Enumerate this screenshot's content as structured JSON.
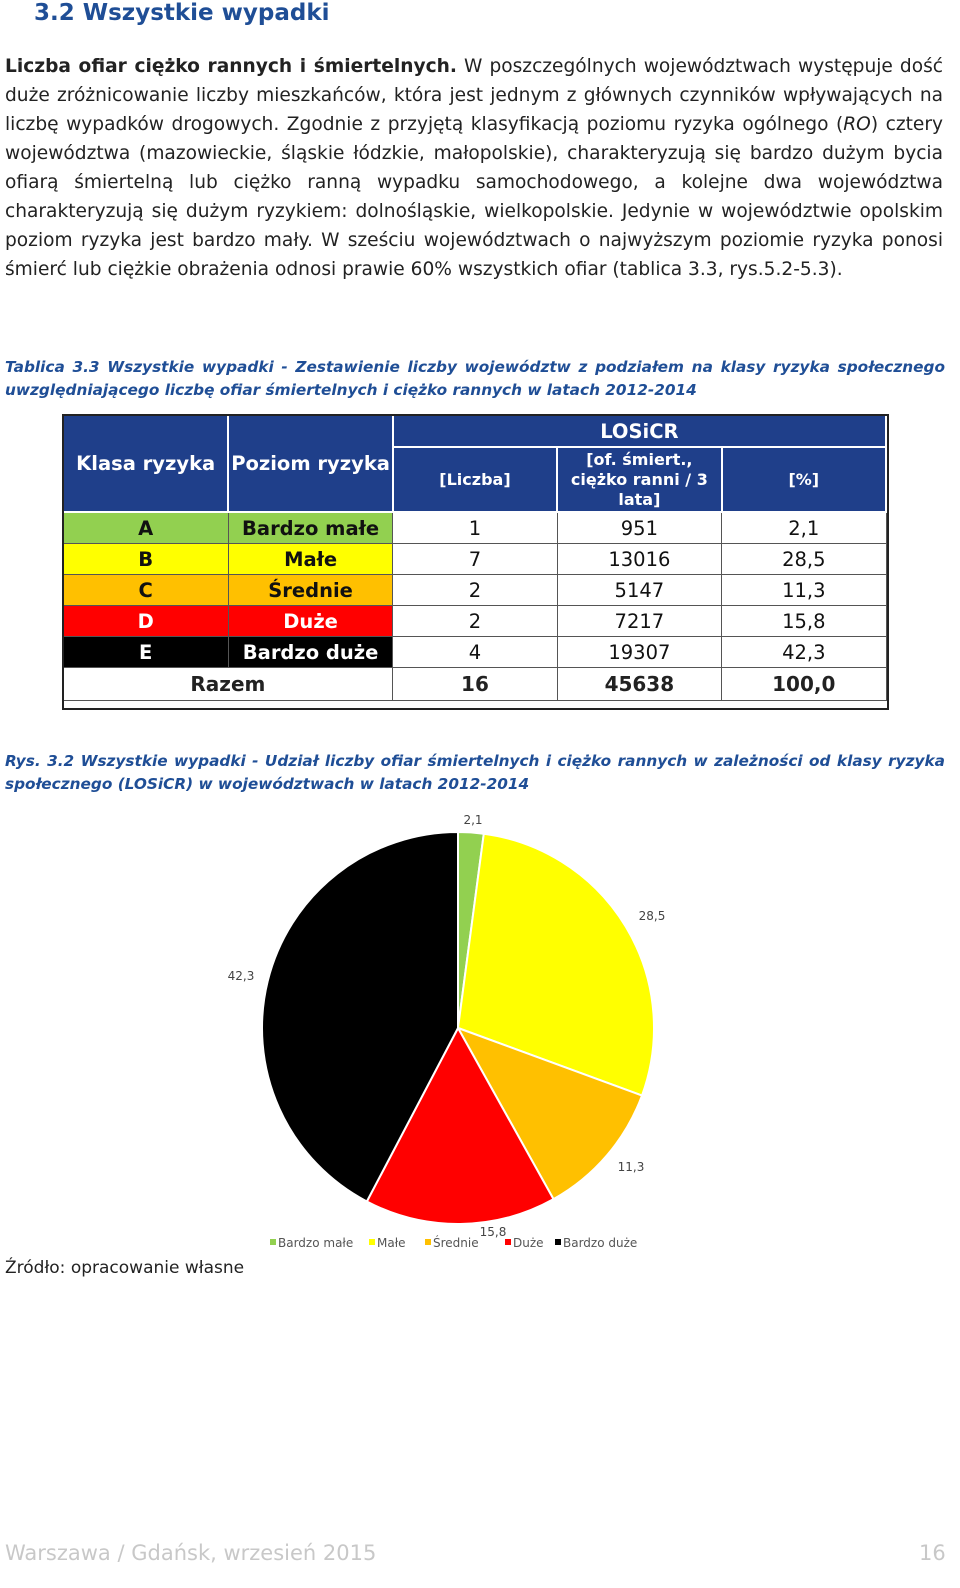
{
  "section": {
    "title": "3.2 Wszystkie wypadki"
  },
  "intro": {
    "lead_bold": "Liczba ofiar ciężko rannych i śmiertelnych.",
    "text_1": " W poszczególnych województwach występuje dość duże zróżnicowanie liczby mieszkańców, która jest jednym z głównych czynników wpływających na liczbę wypadków drogowych. Zgodnie z przyjętą klasyfikacją poziomu ryzyka ogólnego (",
    "text_ro": "RO",
    "text_2": ") cztery województwa (mazowieckie, śląskie łódzkie, małopolskie), charakteryzują się bardzo dużym bycia ofiarą śmiertelną lub ciężko ranną wypadku samochodowego, a kolejne dwa województwa charakteryzują się dużym ryzykiem: dolnośląskie, wielkopolskie. Jedynie w województwie opolskim poziom ryzyka jest bardzo mały. W sześciu województwach o najwyższym poziomie ryzyka ponosi śmierć lub ciężkie obrażenia odnosi prawie 60% wszystkich ofiar (tablica 3.3, rys.5.2-5.3)."
  },
  "table_caption": "Tablica 3.3 Wszystkie wypadki - Zestawienie liczby województw z podziałem na klasy ryzyka społecznego uwzględniającego liczbę ofiar śmiertelnych i ciężko rannych w latach 2012-2014",
  "table": {
    "head": {
      "klasa": "Klasa ryzyka",
      "poziom": "Poziom ryzyka",
      "losicr": "LOSiCR",
      "liczba": "[Liczba]",
      "ofiar": "[of. śmiert., ciężko ranni / 3 lata]",
      "proc": "[%]"
    },
    "rows": [
      {
        "klasa": "A",
        "poziom": "Bardzo małe",
        "liczba": "1",
        "ofiar": "951",
        "proc": "2,1",
        "bg": "#92d050",
        "fg": "#111111"
      },
      {
        "klasa": "B",
        "poziom": "Małe",
        "liczba": "7",
        "ofiar": "13016",
        "proc": "28,5",
        "bg": "#ffff00",
        "fg": "#111111"
      },
      {
        "klasa": "C",
        "poziom": "Średnie",
        "liczba": "2",
        "ofiar": "5147",
        "proc": "11,3",
        "bg": "#ffc000",
        "fg": "#111111"
      },
      {
        "klasa": "D",
        "poziom": "Duże",
        "liczba": "2",
        "ofiar": "7217",
        "proc": "15,8",
        "bg": "#ff0000",
        "fg": "#ffffff"
      },
      {
        "klasa": "E",
        "poziom": "Bardzo duże",
        "liczba": "4",
        "ofiar": "19307",
        "proc": "42,3",
        "bg": "#000000",
        "fg": "#ffffff"
      }
    ],
    "total": {
      "label": "Razem",
      "liczba": "16",
      "ofiar": "45638",
      "proc": "100,0"
    }
  },
  "chart_caption": "Rys. 3.2 Wszystkie wypadki - Udział liczby ofiar śmiertelnych i ciężko rannych w zależności od klasy ryzyka społecznego (LOSiCR) w województwach w latach 2012-2014",
  "chart_data": {
    "type": "pie",
    "categories": [
      "Bardzo małe",
      "Małe",
      "Średnie",
      "Duże",
      "Bardzo duże"
    ],
    "values": [
      2.1,
      28.5,
      11.3,
      15.8,
      42.3
    ],
    "labels": [
      "2,1",
      "28,5",
      "11,3",
      "15,8",
      "42,3"
    ],
    "colors": [
      "#92d050",
      "#ffff00",
      "#ffc000",
      "#ff0000",
      "#000000"
    ],
    "legend": "bottom"
  },
  "source": "Źródło: opracowanie własne",
  "footer": {
    "left": "Warszawa / Gdańsk, wrzesień 2015",
    "page": "16"
  }
}
